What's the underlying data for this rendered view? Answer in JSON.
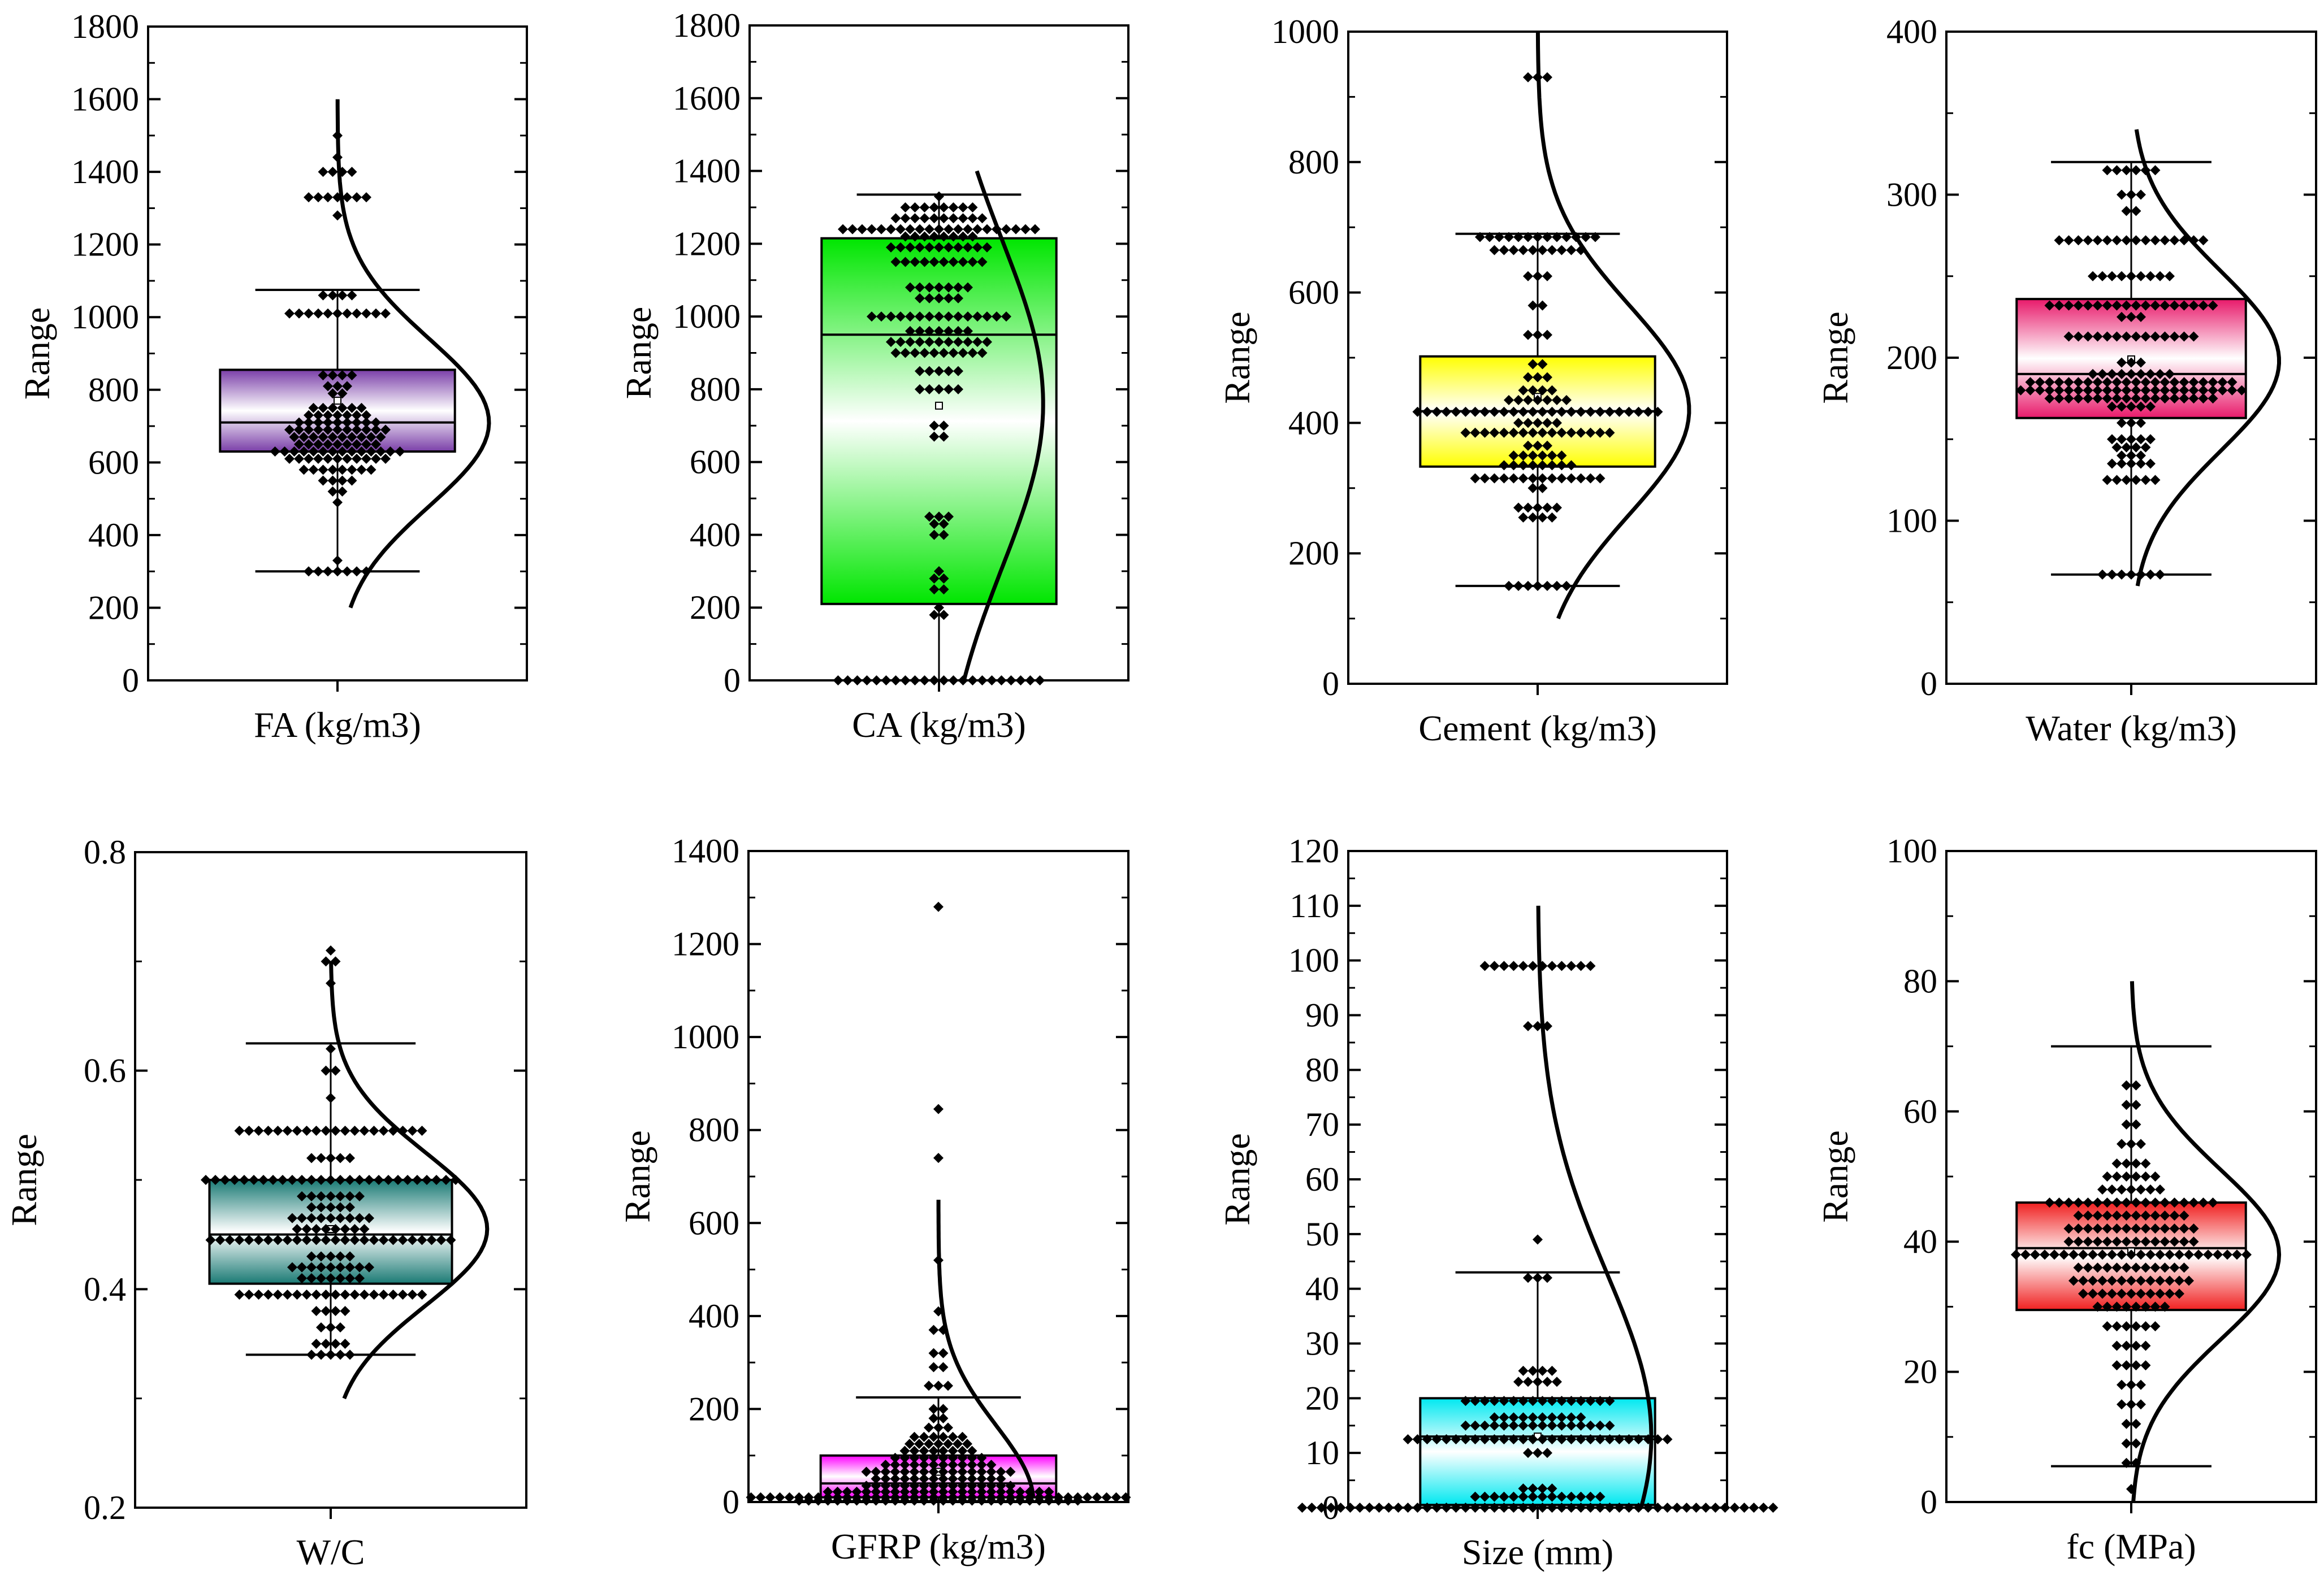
{
  "colors": {
    "purple": "#7a3ea8",
    "green": "#00e600",
    "yellow": "#ffff00",
    "pink": "#e8196a",
    "teal": "#1a7a74",
    "magenta": "#ff00ff",
    "cyan": "#00e8f0",
    "red": "#f02020"
  },
  "chart_data": [
    {
      "type": "box",
      "title": "",
      "xlabel": "FA (kg/m3)",
      "ylabel": "Range",
      "ylim": [
        0,
        1800
      ],
      "yticks": [
        0,
        200,
        400,
        600,
        800,
        1000,
        1200,
        1400,
        1600,
        1800
      ],
      "tick_labels": [
        "0",
        "200",
        "400",
        "600",
        "800",
        "1000",
        "1200",
        "1400",
        "1600",
        "1800"
      ],
      "box": {
        "q1": 630,
        "median": 710,
        "q3": 855,
        "mean": 770,
        "whisker_low": 300,
        "whisker_high": 1075
      },
      "color_key": "purple",
      "normal_curve": {
        "mean": 710,
        "sd": 230,
        "min": 200,
        "max": 1600,
        "amplitude": 0.8
      },
      "points": [
        {
          "value": 300,
          "count": 7
        },
        {
          "value": 330,
          "count": 1
        },
        {
          "value": 490,
          "count": 1
        },
        {
          "value": 520,
          "count": 2
        },
        {
          "value": 550,
          "count": 4
        },
        {
          "value": 580,
          "count": 8
        },
        {
          "value": 610,
          "count": 11
        },
        {
          "value": 630,
          "count": 14
        },
        {
          "value": 650,
          "count": 9
        },
        {
          "value": 670,
          "count": 10
        },
        {
          "value": 690,
          "count": 11
        },
        {
          "value": 710,
          "count": 9
        },
        {
          "value": 730,
          "count": 7
        },
        {
          "value": 750,
          "count": 6
        },
        {
          "value": 790,
          "count": 2
        },
        {
          "value": 810,
          "count": 3
        },
        {
          "value": 840,
          "count": 4
        },
        {
          "value": 1010,
          "count": 11
        },
        {
          "value": 1060,
          "count": 4
        },
        {
          "value": 1280,
          "count": 1
        },
        {
          "value": 1330,
          "count": 7
        },
        {
          "value": 1400,
          "count": 4
        },
        {
          "value": 1440,
          "count": 1
        },
        {
          "value": 1500,
          "count": 1
        }
      ]
    },
    {
      "type": "box",
      "title": "",
      "xlabel": "CA (kg/m3)",
      "ylabel": "Range",
      "ylim": [
        0,
        1800
      ],
      "yticks": [
        0,
        200,
        400,
        600,
        800,
        1000,
        1200,
        1400,
        1600,
        1800
      ],
      "tick_labels": [
        "0",
        "200",
        "400",
        "600",
        "800",
        "1000",
        "1200",
        "1400",
        "1600",
        "1800"
      ],
      "box": {
        "q1": 210,
        "median": 950,
        "q3": 1215,
        "mean": 755,
        "whisker_low": 0,
        "whisker_high": 1335
      },
      "color_key": "green",
      "normal_curve": {
        "mean": 760,
        "sd": 450,
        "min": 0,
        "max": 1400,
        "amplitude": 0.55
      },
      "points": [
        {
          "value": 0,
          "count": 22
        },
        {
          "value": 180,
          "count": 2
        },
        {
          "value": 200,
          "count": 1
        },
        {
          "value": 250,
          "count": 2
        },
        {
          "value": 280,
          "count": 2
        },
        {
          "value": 300,
          "count": 1
        },
        {
          "value": 400,
          "count": 2
        },
        {
          "value": 430,
          "count": 2
        },
        {
          "value": 450,
          "count": 3
        },
        {
          "value": 670,
          "count": 2
        },
        {
          "value": 700,
          "count": 2
        },
        {
          "value": 800,
          "count": 5
        },
        {
          "value": 850,
          "count": 5
        },
        {
          "value": 900,
          "count": 10
        },
        {
          "value": 930,
          "count": 11
        },
        {
          "value": 960,
          "count": 7
        },
        {
          "value": 1000,
          "count": 15
        },
        {
          "value": 1050,
          "count": 5
        },
        {
          "value": 1080,
          "count": 7
        },
        {
          "value": 1150,
          "count": 10
        },
        {
          "value": 1190,
          "count": 11
        },
        {
          "value": 1220,
          "count": 8
        },
        {
          "value": 1240,
          "count": 21
        },
        {
          "value": 1270,
          "count": 10
        },
        {
          "value": 1300,
          "count": 8
        },
        {
          "value": 1330,
          "count": 1
        }
      ]
    },
    {
      "type": "box",
      "title": "",
      "xlabel": "Cement (kg/m3)",
      "ylabel": "Range",
      "ylim": [
        0,
        1000
      ],
      "yticks": [
        0,
        200,
        400,
        600,
        800,
        1000
      ],
      "tick_labels": [
        "0",
        "200",
        "400",
        "600",
        "800",
        "1000"
      ],
      "box": {
        "q1": 333,
        "median": 418,
        "q3": 502,
        "mean": 440,
        "whisker_low": 150,
        "whisker_high": 690
      },
      "color_key": "yellow",
      "normal_curve": {
        "mean": 420,
        "sd": 160,
        "min": 100,
        "max": 1000,
        "amplitude": 0.8
      },
      "points": [
        {
          "value": 150,
          "count": 7
        },
        {
          "value": 255,
          "count": 4
        },
        {
          "value": 270,
          "count": 5
        },
        {
          "value": 300,
          "count": 2
        },
        {
          "value": 315,
          "count": 14
        },
        {
          "value": 335,
          "count": 8
        },
        {
          "value": 350,
          "count": 6
        },
        {
          "value": 365,
          "count": 3
        },
        {
          "value": 385,
          "count": 16
        },
        {
          "value": 400,
          "count": 5
        },
        {
          "value": 417,
          "count": 26
        },
        {
          "value": 435,
          "count": 7
        },
        {
          "value": 450,
          "count": 4
        },
        {
          "value": 470,
          "count": 3
        },
        {
          "value": 490,
          "count": 2
        },
        {
          "value": 535,
          "count": 3
        },
        {
          "value": 580,
          "count": 2
        },
        {
          "value": 625,
          "count": 3
        },
        {
          "value": 665,
          "count": 10
        },
        {
          "value": 685,
          "count": 13
        },
        {
          "value": 930,
          "count": 3
        }
      ]
    },
    {
      "type": "box",
      "title": "",
      "xlabel": "Water (kg/m3)",
      "ylabel": "Range",
      "ylim": [
        0,
        400
      ],
      "yticks": [
        0,
        100,
        200,
        300,
        400
      ],
      "tick_labels": [
        "0",
        "100",
        "200",
        "300",
        "400"
      ],
      "box": {
        "q1": 163,
        "median": 190,
        "q3": 236,
        "mean": 199,
        "whisker_low": 67,
        "whisker_high": 320
      },
      "color_key": "pink",
      "normal_curve": {
        "mean": 198,
        "sd": 55,
        "min": 60,
        "max": 340,
        "amplitude": 0.8
      },
      "points": [
        {
          "value": 67,
          "count": 7
        },
        {
          "value": 125,
          "count": 6
        },
        {
          "value": 135,
          "count": 5
        },
        {
          "value": 140,
          "count": 3
        },
        {
          "value": 145,
          "count": 4
        },
        {
          "value": 150,
          "count": 5
        },
        {
          "value": 160,
          "count": 3
        },
        {
          "value": 170,
          "count": 5
        },
        {
          "value": 175,
          "count": 18
        },
        {
          "value": 180,
          "count": 24
        },
        {
          "value": 185,
          "count": 22
        },
        {
          "value": 190,
          "count": 9
        },
        {
          "value": 197,
          "count": 3
        },
        {
          "value": 213,
          "count": 14
        },
        {
          "value": 225,
          "count": 3
        },
        {
          "value": 232,
          "count": 18
        },
        {
          "value": 250,
          "count": 9
        },
        {
          "value": 272,
          "count": 16
        },
        {
          "value": 290,
          "count": 2
        },
        {
          "value": 300,
          "count": 3
        },
        {
          "value": 315,
          "count": 6
        }
      ]
    },
    {
      "type": "box",
      "title": "",
      "xlabel": "W/C",
      "ylabel": "Range",
      "ylim": [
        0.2,
        0.8
      ],
      "yticks": [
        0.2,
        0.4,
        0.6,
        0.8
      ],
      "tick_labels": [
        "0.2",
        "0.4",
        "0.6",
        "0.8"
      ],
      "box": {
        "q1": 0.405,
        "median": 0.45,
        "q3": 0.5,
        "mean": 0.455,
        "whisker_low": 0.34,
        "whisker_high": 0.625
      },
      "color_key": "teal",
      "normal_curve": {
        "mean": 0.455,
        "sd": 0.07,
        "min": 0.3,
        "max": 0.7,
        "amplitude": 0.8
      },
      "points": [
        {
          "value": 0.34,
          "count": 5
        },
        {
          "value": 0.35,
          "count": 4
        },
        {
          "value": 0.365,
          "count": 3
        },
        {
          "value": 0.38,
          "count": 4
        },
        {
          "value": 0.395,
          "count": 20
        },
        {
          "value": 0.41,
          "count": 7
        },
        {
          "value": 0.42,
          "count": 9
        },
        {
          "value": 0.43,
          "count": 5
        },
        {
          "value": 0.445,
          "count": 26
        },
        {
          "value": 0.455,
          "count": 8
        },
        {
          "value": 0.465,
          "count": 9
        },
        {
          "value": 0.475,
          "count": 5
        },
        {
          "value": 0.485,
          "count": 7
        },
        {
          "value": 0.5,
          "count": 27
        },
        {
          "value": 0.52,
          "count": 5
        },
        {
          "value": 0.545,
          "count": 20
        },
        {
          "value": 0.575,
          "count": 1
        },
        {
          "value": 0.6,
          "count": 2
        },
        {
          "value": 0.62,
          "count": 1
        },
        {
          "value": 0.68,
          "count": 1
        },
        {
          "value": 0.7,
          "count": 2
        },
        {
          "value": 0.71,
          "count": 1
        }
      ]
    },
    {
      "type": "box",
      "title": "",
      "xlabel": "GFRP (kg/m3)",
      "ylabel": "Range",
      "ylim": [
        0,
        1400
      ],
      "yticks": [
        0,
        200,
        400,
        600,
        800,
        1000,
        1200,
        1400
      ],
      "tick_labels": [
        "0",
        "200",
        "400",
        "600",
        "800",
        "1000",
        "1200",
        "1400"
      ],
      "box": {
        "q1": 10,
        "median": 40,
        "q3": 100,
        "mean": 65,
        "whisker_low": 0,
        "whisker_high": 225
      },
      "color_key": "magenta",
      "normal_curve": {
        "mean": 0,
        "sd": 165,
        "min": 10,
        "max": 650,
        "amplitude": 0.5
      },
      "points": [
        {
          "value": 3,
          "count": 30
        },
        {
          "value": 10,
          "count": 40
        },
        {
          "value": 22,
          "count": 24
        },
        {
          "value": 35,
          "count": 16
        },
        {
          "value": 50,
          "count": 14
        },
        {
          "value": 65,
          "count": 16
        },
        {
          "value": 80,
          "count": 12
        },
        {
          "value": 95,
          "count": 10
        },
        {
          "value": 110,
          "count": 8
        },
        {
          "value": 125,
          "count": 7
        },
        {
          "value": 140,
          "count": 6
        },
        {
          "value": 160,
          "count": 3
        },
        {
          "value": 180,
          "count": 2
        },
        {
          "value": 200,
          "count": 2
        },
        {
          "value": 250,
          "count": 3
        },
        {
          "value": 290,
          "count": 2
        },
        {
          "value": 320,
          "count": 2
        },
        {
          "value": 370,
          "count": 2
        },
        {
          "value": 410,
          "count": 1
        },
        {
          "value": 520,
          "count": 1
        },
        {
          "value": 740,
          "count": 1
        },
        {
          "value": 845,
          "count": 1
        },
        {
          "value": 1280,
          "count": 1
        }
      ]
    },
    {
      "type": "box",
      "title": "",
      "xlabel": "Size (mm)",
      "ylabel": "Range",
      "ylim": [
        0,
        120
      ],
      "yticks": [
        0,
        10,
        20,
        30,
        40,
        50,
        60,
        70,
        80,
        90,
        100,
        110,
        120
      ],
      "tick_labels": [
        "0",
        "10",
        "20",
        "30",
        "40",
        "50",
        "60",
        "70",
        "80",
        "90",
        "100",
        "110",
        "120"
      ],
      "box": {
        "q1": 0.5,
        "median": 13,
        "q3": 20,
        "mean": 13,
        "whisker_low": 0,
        "whisker_high": 43
      },
      "color_key": "cyan",
      "normal_curve": {
        "mean": 13,
        "sd": 30,
        "min": 0,
        "max": 110,
        "amplitude": 0.6
      },
      "points": [
        {
          "value": 0,
          "count": 50
        },
        {
          "value": 2,
          "count": 14
        },
        {
          "value": 3.5,
          "count": 4
        },
        {
          "value": 10,
          "count": 3
        },
        {
          "value": 12.5,
          "count": 28
        },
        {
          "value": 15,
          "count": 16
        },
        {
          "value": 16.5,
          "count": 10
        },
        {
          "value": 19.5,
          "count": 16
        },
        {
          "value": 23,
          "count": 5
        },
        {
          "value": 25,
          "count": 4
        },
        {
          "value": 42,
          "count": 3
        },
        {
          "value": 49,
          "count": 1
        },
        {
          "value": 88,
          "count": 3
        },
        {
          "value": 99,
          "count": 12
        }
      ]
    },
    {
      "type": "box",
      "title": "",
      "xlabel": "fc (MPa)",
      "ylabel": "Range",
      "ylim": [
        0,
        100
      ],
      "yticks": [
        0,
        20,
        40,
        60,
        80,
        100
      ],
      "tick_labels": [
        "0",
        "20",
        "40",
        "60",
        "80",
        "100"
      ],
      "box": {
        "q1": 29.5,
        "median": 39,
        "q3": 46,
        "mean": 38.5,
        "whisker_low": 5.5,
        "whisker_high": 70
      },
      "color_key": "red",
      "normal_curve": {
        "mean": 38,
        "sd": 13,
        "min": 0,
        "max": 80,
        "amplitude": 0.8
      },
      "points": [
        {
          "value": 2,
          "count": 1
        },
        {
          "value": 6,
          "count": 2
        },
        {
          "value": 9,
          "count": 2
        },
        {
          "value": 12,
          "count": 2
        },
        {
          "value": 15,
          "count": 3
        },
        {
          "value": 18,
          "count": 3
        },
        {
          "value": 21,
          "count": 4
        },
        {
          "value": 24,
          "count": 4
        },
        {
          "value": 27,
          "count": 6
        },
        {
          "value": 30,
          "count": 8
        },
        {
          "value": 32,
          "count": 11
        },
        {
          "value": 34,
          "count": 13
        },
        {
          "value": 36,
          "count": 12
        },
        {
          "value": 38,
          "count": 25
        },
        {
          "value": 40,
          "count": 14
        },
        {
          "value": 42,
          "count": 14
        },
        {
          "value": 44,
          "count": 12
        },
        {
          "value": 46,
          "count": 18
        },
        {
          "value": 48,
          "count": 7
        },
        {
          "value": 50,
          "count": 6
        },
        {
          "value": 52,
          "count": 4
        },
        {
          "value": 55,
          "count": 3
        },
        {
          "value": 58,
          "count": 2
        },
        {
          "value": 61,
          "count": 2
        },
        {
          "value": 64,
          "count": 2
        }
      ]
    }
  ]
}
